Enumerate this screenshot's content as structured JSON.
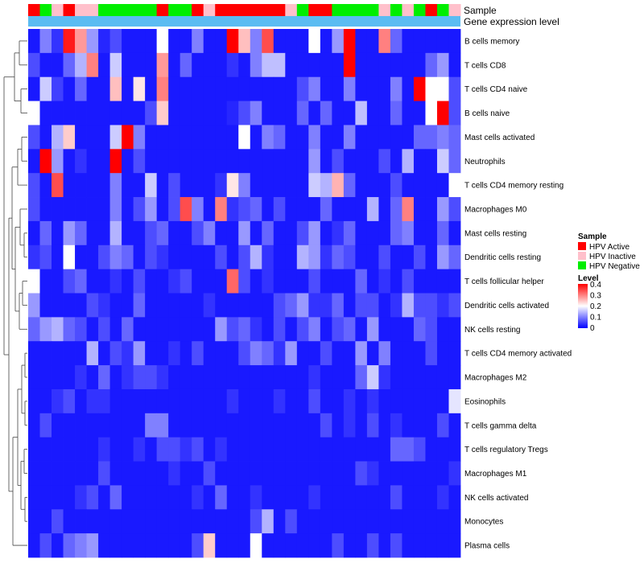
{
  "chart_data": {
    "type": "heatmap",
    "annotation_track_labels": [
      "Sample",
      "Gene expression level"
    ],
    "legend": {
      "sample_title": "Sample",
      "sample_entries": [
        {
          "name": "HPV Active",
          "color": "#ff0000"
        },
        {
          "name": "HPV Inactive",
          "color": "#ffc0cb"
        },
        {
          "name": "HPV Negative",
          "color": "#00ee00"
        }
      ],
      "level_title": "Level",
      "level_ticks": [
        "0.4",
        "0.3",
        "0.2",
        "0.1",
        "0"
      ],
      "level_range": [
        0,
        0.4
      ]
    },
    "colors": {
      "low": "#0000ff",
      "mid": "#ffffff",
      "high": "#ff0000",
      "expression_track": "#5bbcf2"
    },
    "sample_groups": [
      "HPV Active",
      "HPV Negative",
      "HPV Inactive",
      "HPV Active",
      "HPV Inactive",
      "HPV Inactive",
      "HPV Negative",
      "HPV Negative",
      "HPV Negative",
      "HPV Negative",
      "HPV Negative",
      "HPV Active",
      "HPV Negative",
      "HPV Negative",
      "HPV Active",
      "HPV Inactive",
      "HPV Active",
      "HPV Active",
      "HPV Active",
      "HPV Active",
      "HPV Active",
      "HPV Active",
      "HPV Inactive",
      "HPV Negative",
      "HPV Active",
      "HPV Active",
      "HPV Negative",
      "HPV Negative",
      "HPV Negative",
      "HPV Negative",
      "HPV Inactive",
      "HPV Negative",
      "HPV Inactive",
      "HPV Negative",
      "HPV Active",
      "HPV Negative",
      "HPV Inactive"
    ],
    "rows": [
      "B cells memory",
      "T cells CD8",
      "T cells CD4 naive",
      "B cells naive",
      "Mast cells activated",
      "Neutrophils",
      "T cells CD4 memory resting",
      "Macrophages M0",
      "Mast cells resting",
      "Dendritic cells resting",
      "T cells follicular helper",
      "Dendritic cells activated",
      "NK cells resting",
      "T cells CD4 memory activated",
      "Macrophages M2",
      "Eosinophils",
      "T cells gamma delta",
      "T cells regulatory  Tregs",
      "Macrophages M1",
      "NK cells activated",
      "Monocytes",
      "Plasma cells"
    ],
    "values": [
      [
        0.02,
        0.1,
        0.04,
        0.38,
        0.28,
        0.12,
        0.03,
        0.06,
        0.02,
        0.02,
        0.02,
        0.2,
        0.02,
        0.02,
        0.1,
        0.02,
        0.02,
        0.4,
        0.25,
        0.1,
        0.34,
        0.02,
        0.02,
        0.02,
        0.2,
        0.02,
        0.12,
        0.4,
        0.02,
        0.02,
        0.3,
        0.08,
        0.02,
        0.02,
        0.02,
        0.02,
        0.02
      ],
      [
        0.06,
        0.02,
        0.02,
        0.08,
        0.14,
        0.3,
        0.02,
        0.16,
        0.02,
        0.02,
        0.02,
        0.28,
        0.02,
        0.08,
        0.02,
        0.02,
        0.02,
        0.04,
        0.02,
        0.1,
        0.15,
        0.15,
        0.02,
        0.02,
        0.02,
        0.02,
        0.02,
        0.4,
        0.02,
        0.02,
        0.02,
        0.02,
        0.02,
        0.02,
        0.08,
        0.12,
        0.02
      ],
      [
        0.02,
        0.16,
        0.05,
        0.02,
        0.08,
        0.02,
        0.02,
        0.25,
        0.02,
        0.22,
        0.02,
        0.3,
        0.02,
        0.02,
        0.02,
        0.02,
        0.02,
        0.02,
        0.02,
        0.02,
        0.02,
        0.02,
        0.02,
        0.06,
        0.1,
        0.02,
        0.02,
        0.1,
        0.02,
        0.02,
        0.02,
        0.1,
        0.02,
        0.4,
        0.2,
        0.2,
        0.06
      ],
      [
        0.2,
        0.02,
        0.02,
        0.02,
        0.02,
        0.02,
        0.02,
        0.02,
        0.02,
        0.02,
        0.06,
        0.24,
        0.02,
        0.02,
        0.02,
        0.02,
        0.02,
        0.03,
        0.06,
        0.1,
        0.02,
        0.02,
        0.02,
        0.08,
        0.02,
        0.08,
        0.02,
        0.02,
        0.15,
        0.02,
        0.02,
        0.08,
        0.02,
        0.02,
        0.2,
        0.4,
        0.06
      ],
      [
        0.06,
        0.02,
        0.14,
        0.24,
        0.02,
        0.02,
        0.02,
        0.16,
        0.4,
        0.1,
        0.02,
        0.02,
        0.02,
        0.02,
        0.02,
        0.02,
        0.02,
        0.02,
        0.2,
        0.02,
        0.1,
        0.08,
        0.02,
        0.02,
        0.1,
        0.02,
        0.02,
        0.1,
        0.02,
        0.02,
        0.02,
        0.02,
        0.02,
        0.08,
        0.08,
        0.1,
        0.08
      ],
      [
        0.02,
        0.4,
        0.12,
        0.02,
        0.04,
        0.02,
        0.02,
        0.4,
        0.02,
        0.06,
        0.02,
        0.02,
        0.02,
        0.02,
        0.02,
        0.02,
        0.02,
        0.02,
        0.02,
        0.02,
        0.02,
        0.02,
        0.02,
        0.02,
        0.12,
        0.02,
        0.06,
        0.02,
        0.02,
        0.02,
        0.06,
        0.02,
        0.14,
        0.02,
        0.02,
        0.16,
        0.08
      ],
      [
        0.06,
        0.02,
        0.34,
        0.02,
        0.02,
        0.02,
        0.02,
        0.1,
        0.02,
        0.02,
        0.16,
        0.02,
        0.06,
        0.02,
        0.02,
        0.02,
        0.04,
        0.22,
        0.1,
        0.02,
        0.02,
        0.02,
        0.02,
        0.02,
        0.16,
        0.14,
        0.26,
        0.08,
        0.02,
        0.02,
        0.02,
        0.06,
        0.02,
        0.02,
        0.02,
        0.02,
        0.2
      ],
      [
        0.06,
        0.02,
        0.02,
        0.02,
        0.02,
        0.02,
        0.02,
        0.1,
        0.02,
        0.06,
        0.12,
        0.02,
        0.06,
        0.34,
        0.1,
        0.02,
        0.3,
        0.04,
        0.06,
        0.08,
        0.02,
        0.06,
        0.02,
        0.02,
        0.02,
        0.08,
        0.02,
        0.02,
        0.02,
        0.14,
        0.02,
        0.08,
        0.3,
        0.02,
        0.02,
        0.12,
        0.06
      ],
      [
        0.02,
        0.08,
        0.02,
        0.12,
        0.08,
        0.02,
        0.02,
        0.14,
        0.02,
        0.02,
        0.06,
        0.08,
        0.02,
        0.02,
        0.06,
        0.1,
        0.02,
        0.02,
        0.12,
        0.02,
        0.08,
        0.02,
        0.02,
        0.06,
        0.12,
        0.02,
        0.04,
        0.08,
        0.02,
        0.02,
        0.02,
        0.08,
        0.1,
        0.02,
        0.02,
        0.08,
        0.02
      ],
      [
        0.04,
        0.06,
        0.02,
        0.2,
        0.02,
        0.02,
        0.06,
        0.1,
        0.08,
        0.02,
        0.06,
        0.04,
        0.02,
        0.02,
        0.02,
        0.02,
        0.06,
        0.02,
        0.06,
        0.14,
        0.04,
        0.02,
        0.02,
        0.14,
        0.12,
        0.04,
        0.08,
        0.06,
        0.02,
        0.02,
        0.06,
        0.02,
        0.02,
        0.06,
        0.02,
        0.12,
        0.08
      ],
      [
        0.2,
        0.02,
        0.02,
        0.06,
        0.08,
        0.02,
        0.02,
        0.04,
        0.02,
        0.06,
        0.02,
        0.02,
        0.04,
        0.06,
        0.02,
        0.02,
        0.02,
        0.32,
        0.06,
        0.02,
        0.04,
        0.02,
        0.02,
        0.02,
        0.06,
        0.02,
        0.02,
        0.02,
        0.08,
        0.02,
        0.04,
        0.02,
        0.06,
        0.02,
        0.02,
        0.02,
        0.02
      ],
      [
        0.12,
        0.02,
        0.02,
        0.02,
        0.02,
        0.06,
        0.04,
        0.02,
        0.02,
        0.08,
        0.02,
        0.02,
        0.02,
        0.02,
        0.02,
        0.04,
        0.02,
        0.02,
        0.02,
        0.02,
        0.02,
        0.06,
        0.08,
        0.12,
        0.04,
        0.04,
        0.08,
        0.02,
        0.06,
        0.06,
        0.02,
        0.04,
        0.14,
        0.06,
        0.06,
        0.04,
        0.06
      ],
      [
        0.08,
        0.12,
        0.14,
        0.08,
        0.06,
        0.02,
        0.06,
        0.02,
        0.08,
        0.02,
        0.02,
        0.02,
        0.02,
        0.02,
        0.02,
        0.02,
        0.12,
        0.06,
        0.08,
        0.04,
        0.02,
        0.06,
        0.02,
        0.06,
        0.1,
        0.02,
        0.06,
        0.08,
        0.02,
        0.12,
        0.02,
        0.02,
        0.02,
        0.08,
        0.06,
        0.02,
        0.02
      ],
      [
        0.02,
        0.02,
        0.02,
        0.02,
        0.02,
        0.14,
        0.02,
        0.06,
        0.04,
        0.12,
        0.02,
        0.02,
        0.04,
        0.02,
        0.06,
        0.02,
        0.02,
        0.02,
        0.06,
        0.1,
        0.08,
        0.04,
        0.12,
        0.02,
        0.02,
        0.06,
        0.02,
        0.02,
        0.12,
        0.02,
        0.1,
        0.02,
        0.02,
        0.02,
        0.06,
        0.02,
        0.02
      ],
      [
        0.02,
        0.02,
        0.02,
        0.02,
        0.04,
        0.02,
        0.08,
        0.02,
        0.04,
        0.06,
        0.06,
        0.04,
        0.02,
        0.02,
        0.02,
        0.02,
        0.02,
        0.02,
        0.02,
        0.02,
        0.02,
        0.02,
        0.02,
        0.02,
        0.04,
        0.02,
        0.02,
        0.02,
        0.08,
        0.16,
        0.04,
        0.02,
        0.02,
        0.02,
        0.02,
        0.02,
        0.02
      ],
      [
        0.02,
        0.02,
        0.04,
        0.06,
        0.02,
        0.04,
        0.04,
        0.02,
        0.02,
        0.02,
        0.02,
        0.02,
        0.02,
        0.02,
        0.02,
        0.02,
        0.02,
        0.04,
        0.02,
        0.02,
        0.02,
        0.04,
        0.02,
        0.02,
        0.06,
        0.02,
        0.02,
        0.04,
        0.02,
        0.04,
        0.02,
        0.02,
        0.02,
        0.02,
        0.02,
        0.02,
        0.18
      ],
      [
        0.02,
        0.06,
        0.02,
        0.02,
        0.02,
        0.02,
        0.02,
        0.02,
        0.02,
        0.02,
        0.1,
        0.1,
        0.02,
        0.02,
        0.02,
        0.02,
        0.02,
        0.02,
        0.02,
        0.02,
        0.02,
        0.02,
        0.02,
        0.02,
        0.02,
        0.06,
        0.02,
        0.04,
        0.02,
        0.06,
        0.02,
        0.04,
        0.02,
        0.02,
        0.02,
        0.06,
        0.02
      ],
      [
        0.02,
        0.02,
        0.02,
        0.02,
        0.02,
        0.02,
        0.04,
        0.02,
        0.02,
        0.04,
        0.02,
        0.06,
        0.06,
        0.04,
        0.06,
        0.02,
        0.04,
        0.02,
        0.02,
        0.02,
        0.02,
        0.02,
        0.02,
        0.02,
        0.02,
        0.02,
        0.02,
        0.02,
        0.02,
        0.02,
        0.02,
        0.08,
        0.08,
        0.06,
        0.02,
        0.02,
        0.02
      ],
      [
        0.02,
        0.02,
        0.02,
        0.02,
        0.02,
        0.02,
        0.06,
        0.02,
        0.02,
        0.02,
        0.02,
        0.02,
        0.04,
        0.02,
        0.02,
        0.06,
        0.02,
        0.02,
        0.02,
        0.02,
        0.02,
        0.02,
        0.02,
        0.02,
        0.02,
        0.02,
        0.02,
        0.02,
        0.06,
        0.04,
        0.02,
        0.02,
        0.02,
        0.02,
        0.02,
        0.02,
        0.04
      ],
      [
        0.02,
        0.02,
        0.02,
        0.02,
        0.04,
        0.06,
        0.02,
        0.08,
        0.02,
        0.02,
        0.02,
        0.02,
        0.02,
        0.02,
        0.04,
        0.02,
        0.08,
        0.02,
        0.02,
        0.04,
        0.02,
        0.02,
        0.02,
        0.02,
        0.04,
        0.02,
        0.02,
        0.02,
        0.02,
        0.02,
        0.02,
        0.06,
        0.02,
        0.02,
        0.02,
        0.04,
        0.02
      ],
      [
        0.02,
        0.02,
        0.06,
        0.02,
        0.02,
        0.02,
        0.02,
        0.02,
        0.02,
        0.02,
        0.02,
        0.02,
        0.02,
        0.02,
        0.02,
        0.02,
        0.02,
        0.02,
        0.02,
        0.06,
        0.14,
        0.02,
        0.06,
        0.02,
        0.02,
        0.02,
        0.02,
        0.02,
        0.02,
        0.02,
        0.02,
        0.02,
        0.02,
        0.02,
        0.02,
        0.02,
        0.02
      ],
      [
        0.02,
        0.06,
        0.02,
        0.08,
        0.1,
        0.12,
        0.02,
        0.02,
        0.02,
        0.02,
        0.02,
        0.02,
        0.02,
        0.02,
        0.06,
        0.24,
        0.02,
        0.02,
        0.02,
        0.2,
        0.02,
        0.02,
        0.02,
        0.02,
        0.02,
        0.02,
        0.06,
        0.02,
        0.02,
        0.06,
        0.02,
        0.06,
        0.02,
        0.02,
        0.02,
        0.02,
        0.02
      ]
    ]
  }
}
